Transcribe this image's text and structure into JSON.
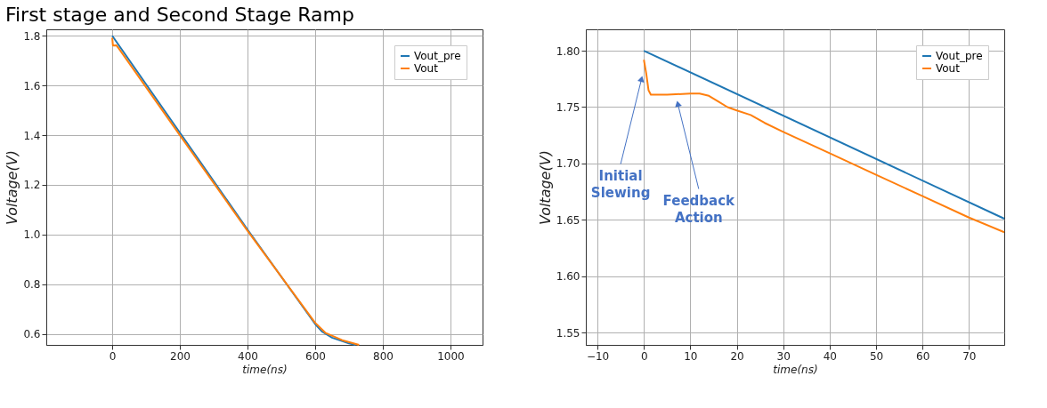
{
  "chart_data": [
    {
      "type": "line",
      "title": "First stage and Second Stage Ramp",
      "xlabel": "time(ns)",
      "ylabel": "Voltage(V)",
      "series": [
        {
          "name": "Vout_pre",
          "color": "#1f77b4",
          "x": [
            0,
            200,
            400,
            600,
            620,
            650,
            700,
            720
          ],
          "values": [
            1.8,
            1.41,
            1.02,
            0.64,
            0.61,
            0.585,
            0.562,
            0.556
          ]
        },
        {
          "name": "Vout",
          "color": "#ff7f0e",
          "x": [
            0,
            2,
            12,
            20,
            200,
            400,
            600,
            630,
            680,
            730
          ],
          "values": [
            1.792,
            1.761,
            1.762,
            1.748,
            1.4,
            1.015,
            0.645,
            0.605,
            0.575,
            0.556
          ]
        }
      ],
      "xlim": [
        -195,
        1095
      ],
      "ylim": [
        0.556,
        1.826
      ],
      "xticks": [
        0,
        200,
        400,
        600,
        800,
        1000
      ],
      "yticks": [
        {
          "value": 0.6,
          "label": "0.6"
        },
        {
          "value": 0.8,
          "label": "0.8"
        },
        {
          "value": 1.0,
          "label": "1.0"
        },
        {
          "value": 1.2,
          "label": "1.2"
        },
        {
          "value": 1.4,
          "label": "1.4"
        },
        {
          "value": 1.6,
          "label": "1.6"
        },
        {
          "value": 1.8,
          "label": "1.8"
        }
      ],
      "grid": true,
      "legend": "top right",
      "line_style": "solid",
      "marker": "none"
    },
    {
      "type": "line",
      "xlabel": "time(ns)",
      "ylabel": "Voltage(V)",
      "series": [
        {
          "name": "Vout_pre",
          "color": "#1f77b4",
          "x": [
            0,
            77.6
          ],
          "values": [
            1.8,
            1.651
          ]
        },
        {
          "name": "Vout",
          "color": "#ff7f0e",
          "x": [
            0,
            0.5,
            1,
            1.5,
            5,
            10,
            12,
            14,
            16,
            18,
            20,
            23,
            26,
            30,
            40,
            50,
            60,
            70,
            77.6
          ],
          "values": [
            1.792,
            1.78,
            1.765,
            1.761,
            1.761,
            1.762,
            1.762,
            1.76,
            1.755,
            1.75,
            1.747,
            1.743,
            1.736,
            1.728,
            1.709,
            1.69,
            1.671,
            1.652,
            1.639
          ]
        }
      ],
      "xlim": [
        -12.5,
        77.6
      ],
      "ylim": [
        1.539,
        1.819
      ],
      "xticks": [
        -10,
        0,
        10,
        20,
        30,
        40,
        50,
        60,
        70
      ],
      "yticks": [
        {
          "value": 1.55,
          "label": "1.55"
        },
        {
          "value": 1.6,
          "label": "1.60"
        },
        {
          "value": 1.65,
          "label": "1.65"
        },
        {
          "value": 1.7,
          "label": "1.70"
        },
        {
          "value": 1.75,
          "label": "1.75"
        },
        {
          "value": 1.8,
          "label": "1.80"
        }
      ],
      "annotations": [
        {
          "text": "Initial Slewing",
          "x": -0.5,
          "y": 1.775
        },
        {
          "text": "Feedback Action",
          "x": 7.3,
          "y": 1.753
        }
      ],
      "grid": true,
      "legend": "top right",
      "line_style": "solid",
      "marker": "none"
    }
  ]
}
